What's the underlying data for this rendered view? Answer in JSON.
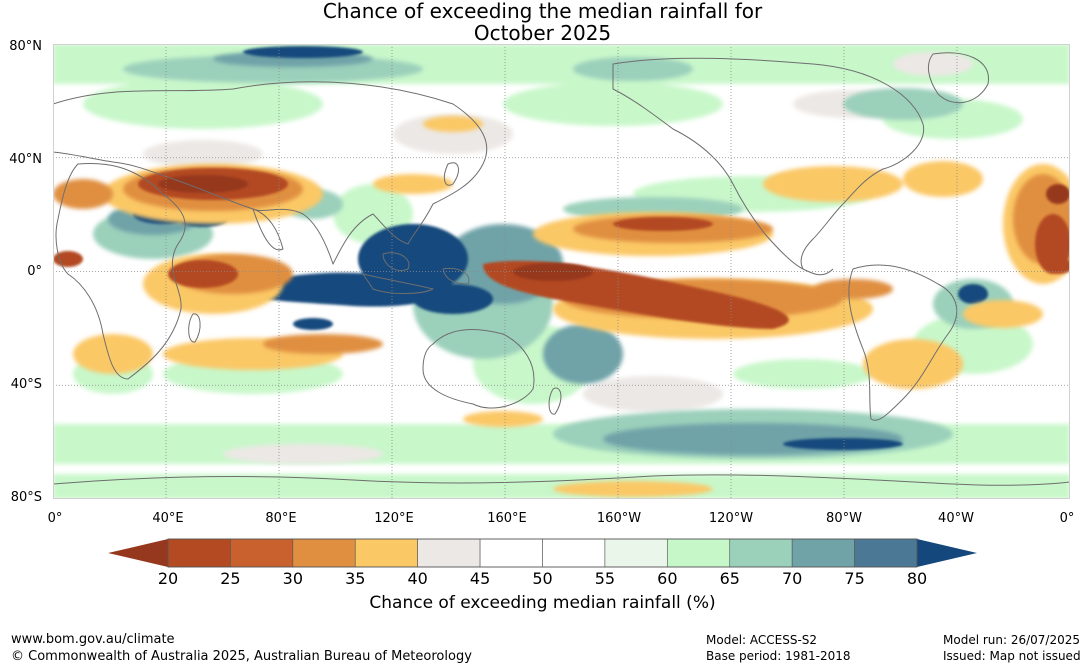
{
  "title": {
    "line1": "Chance of exceeding the median rainfall for",
    "line2": "October 2025"
  },
  "map": {
    "lat_labels": [
      "80°N",
      "40°N",
      "0°",
      "40°S",
      "80°S"
    ],
    "lon_labels": [
      "0°",
      "40°E",
      "80°E",
      "120°E",
      "160°E",
      "160°W",
      "120°W",
      "80°W",
      "40°W",
      "0°"
    ],
    "lat_range": [
      -80,
      80
    ],
    "lon_range": [
      0,
      360
    ],
    "gridlines": true,
    "colors": {
      "land_outline": "#6e6e6e",
      "gridline": "#8a8a8a"
    }
  },
  "colorbar": {
    "ticks": [
      "20",
      "25",
      "30",
      "35",
      "40",
      "45",
      "50",
      "55",
      "60",
      "65",
      "70",
      "75",
      "80"
    ],
    "colors": [
      "#b34a22",
      "#c9612e",
      "#e08f40",
      "#fbc866",
      "#ece8e5",
      "#ffffff",
      "#ffffff",
      "#eaf6e9",
      "#c6f7c8",
      "#9bd0bb",
      "#6fa3a8",
      "#4b7894"
    ],
    "extend_low_color": "#96381e",
    "extend_high_color": "#14487d",
    "label": "Chance of exceeding median rainfall (%)"
  },
  "footer": {
    "website": "www.bom.gov.au/climate",
    "copyright": "© Commonwealth of Australia 2025, Australian Bureau of Meteorology",
    "model": "Model: ACCESS-S2",
    "base_period": "Base period: 1981-2018",
    "model_run": "Model run: 26/07/2025",
    "issued": "Issued: Map not issued"
  }
}
